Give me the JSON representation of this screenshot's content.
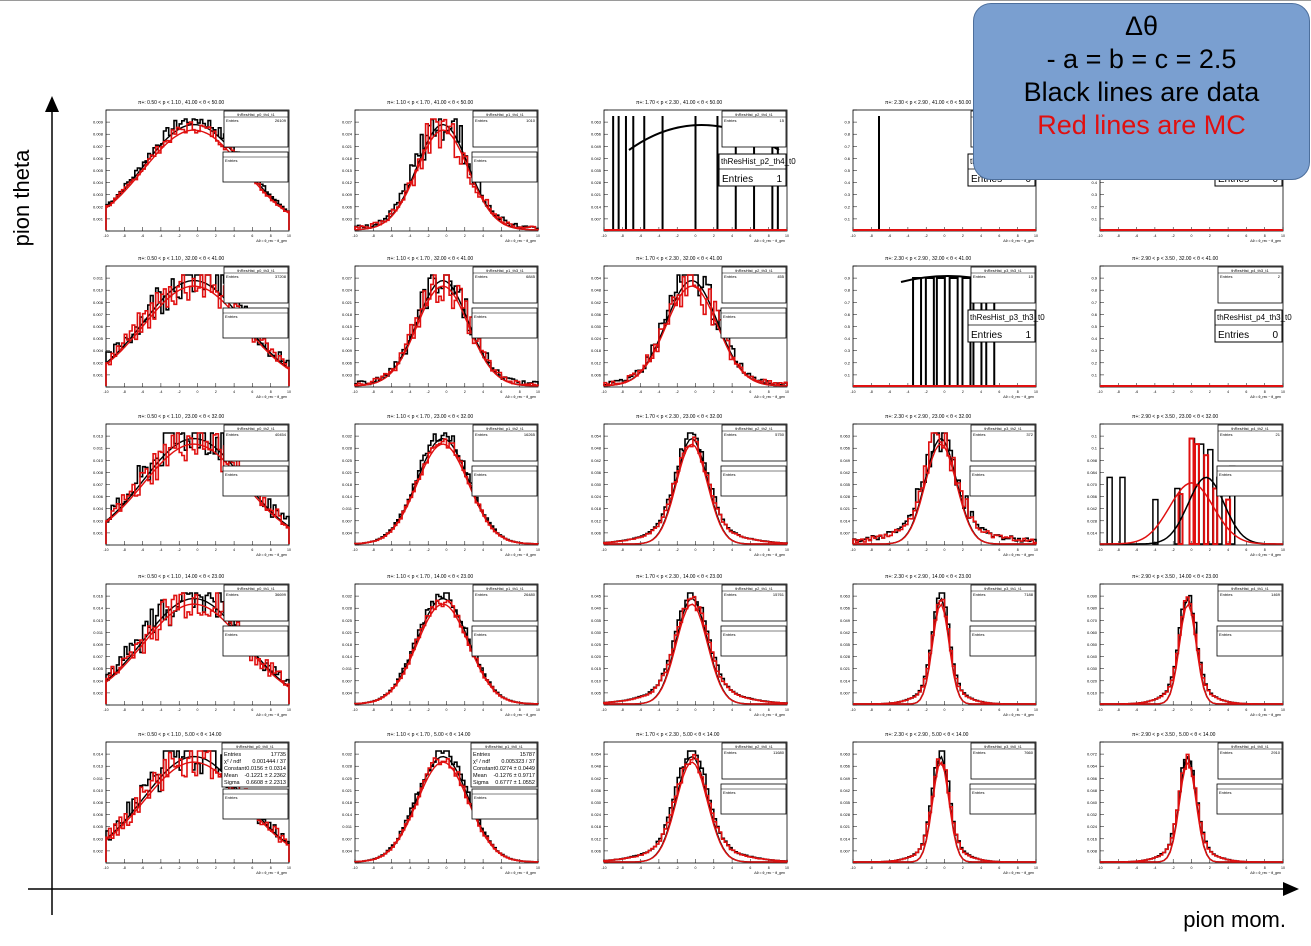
{
  "page": {
    "y_axis_label": "pion theta",
    "x_axis_label": "pion mom.",
    "legend": {
      "line1": "Δθ",
      "line2": "- a = b = c = 2.5",
      "line3": "Black lines are data",
      "line4": "Red lines are MC"
    },
    "colors": {
      "data": "#000000",
      "mc": "#e01010",
      "legend_bg": "#7a9fd0"
    }
  },
  "chart_data": {
    "type": "grid-of-histograms",
    "rows": [
      "41.00 < θ < 50.00",
      "32.00 < θ < 41.00",
      "23.00 < θ < 32.00",
      "14.00 < θ < 23.00",
      "5.00 < θ < 14.00"
    ],
    "cols": [
      "0.50 < p < 1.10",
      "1.10 < p < 1.70",
      "1.70 < p < 2.30",
      "2.30 < p < 2.90",
      "2.90 < p < 3.50"
    ],
    "panels": [
      {
        "title": "π+: 0.50 < p < 1.10 , 41.00 < θ < 50.00",
        "stats_title": "thResHist_p0_th4_t1",
        "entries": "26109",
        "kind": "broad",
        "noisy": false,
        "ymax": 0.01,
        "text_box": false
      },
      {
        "title": "π+: 1.10 < p < 1.70 , 41.00 < θ < 50.00",
        "stats_title": "thResHist_p1_th4_t1",
        "entries": "1010",
        "kind": "medium",
        "noisy": true,
        "ymax": 0.03,
        "text_box": false
      },
      {
        "title": "π+: 1.70 < p < 2.30 , 41.00 < θ < 50.00",
        "stats_title": "thResHist_p2_th4_t1",
        "entries": "15",
        "kind": "spikes",
        "noisy": false,
        "ymax": 0.07,
        "text_box": true,
        "box_title": "thResHist_p2_th4_t0",
        "box_label": "Entries",
        "box_value": "1"
      },
      {
        "title": "π+: 2.30 < p < 2.90 , 41.00 < θ < 50.00",
        "stats_title": "thResHist_p3_th4_t1",
        "entries": "1",
        "kind": "single",
        "noisy": false,
        "ymax": 1,
        "text_box": true,
        "box_title": "thResHist_p3_th4_t0",
        "box_label": "Entries",
        "box_value": "0"
      },
      {
        "title": "π+: 2.90 < p < 3.50 , 41.00 < θ < 50.00",
        "stats_title": "thResHist_p4_th4_t1",
        "entries": "0",
        "kind": "empty",
        "noisy": false,
        "ymax": 1,
        "text_box": true,
        "box_title": "thResHist_p4_th4_t0",
        "box_label": "Entries",
        "box_value": "0"
      },
      {
        "title": "π+: 0.50 < p < 1.10 , 32.00 < θ < 41.00",
        "stats_title": "thResHist_p0_th3_t1",
        "entries": "37208",
        "kind": "broad",
        "noisy": true,
        "ymax": 0.012,
        "text_box": false
      },
      {
        "title": "π+: 1.10 < p < 1.70 , 32.00 < θ < 41.00",
        "stats_title": "thResHist_p1_th3_t1",
        "entries": "6845",
        "kind": "medium",
        "noisy": true,
        "ymax": 0.03,
        "text_box": false
      },
      {
        "title": "π+: 1.70 < p < 2.30 , 32.00 < θ < 41.00",
        "stats_title": "thResHist_p2_th3_t1",
        "entries": "455",
        "kind": "medium",
        "noisy": true,
        "ymax": 0.06,
        "text_box": false
      },
      {
        "title": "π+: 2.30 < p < 2.90 , 32.00 < θ < 41.00",
        "stats_title": "thResHist_p3_th3_t1",
        "entries": "10",
        "kind": "bars",
        "noisy": false,
        "ymax": 1,
        "text_box": true,
        "box_title": "thResHist_p3_th3_t0",
        "box_label": "Entries",
        "box_value": "1"
      },
      {
        "title": "π+: 2.90 < p < 3.50 , 32.00 < θ < 41.00",
        "stats_title": "thResHist_p4_th3_t1",
        "entries": "2",
        "kind": "empty",
        "noisy": false,
        "ymax": 1,
        "text_box": true,
        "box_title": "thResHist_p4_th3_t0",
        "box_label": "Entries",
        "box_value": "0"
      },
      {
        "title": "π+: 0.50 < p < 1.10 , 23.00 < θ < 32.00",
        "stats_title": "thResHist_p0_th2_t1",
        "entries": "40454",
        "kind": "broad",
        "noisy": true,
        "ymax": 0.014,
        "text_box": false
      },
      {
        "title": "π+: 1.10 < p < 1.70 , 23.00 < θ < 32.00",
        "stats_title": "thResHist_p1_th2_t1",
        "entries": "16265",
        "kind": "medium",
        "noisy": false,
        "ymax": 0.035,
        "text_box": false
      },
      {
        "title": "π+: 1.70 < p < 2.30 , 23.00 < θ < 32.00",
        "stats_title": "thResHist_p2_th2_t1",
        "entries": "5750",
        "kind": "narrow",
        "noisy": false,
        "ymax": 0.06,
        "text_box": false
      },
      {
        "title": "π+: 2.30 < p < 2.90 , 23.00 < θ < 32.00",
        "stats_title": "thResHist_p3_th2_t1",
        "entries": "372",
        "kind": "narrow",
        "noisy": true,
        "ymax": 0.07,
        "text_box": false
      },
      {
        "title": "π+: 2.90 < p < 3.50 , 23.00 < θ < 32.00",
        "stats_title": "thResHist_p4_th2_t1",
        "entries": "21",
        "kind": "spiky",
        "noisy": true,
        "ymax": 0.14,
        "text_box": false
      },
      {
        "title": "π+: 0.50 < p < 1.10 , 14.00 < θ < 23.00",
        "stats_title": "thResHist_p0_th1_t1",
        "entries": "36699",
        "kind": "broad",
        "noisy": true,
        "ymax": 0.018,
        "text_box": false
      },
      {
        "title": "π+: 1.10 < p < 1.70 , 14.00 < θ < 23.00",
        "stats_title": "thResHist_p1_th1_t1",
        "entries": "26480",
        "kind": "medium",
        "noisy": false,
        "ymax": 0.035,
        "text_box": false
      },
      {
        "title": "π+: 1.70 < p < 2.30 , 14.00 < θ < 23.00",
        "stats_title": "thResHist_p2_th1_t1",
        "entries": "15761",
        "kind": "narrow",
        "noisy": false,
        "ymax": 0.05,
        "text_box": false
      },
      {
        "title": "π+: 2.30 < p < 2.90 , 14.00 < θ < 23.00",
        "stats_title": "thResHist_p3_th1_t1",
        "entries": "7188",
        "kind": "vnarrow",
        "noisy": false,
        "ymax": 0.07,
        "text_box": false
      },
      {
        "title": "π+: 2.90 < p < 3.50 , 14.00 < θ < 23.00",
        "stats_title": "thResHist_p4_th1_t1",
        "entries": "1469",
        "kind": "vnarrow",
        "noisy": false,
        "ymax": 0.1,
        "text_box": false
      },
      {
        "title": "π+: 0.50 < p < 1.10 , 5.00 < θ < 14.00",
        "stats_title": "thResHist_p0_th0_t1",
        "entries": "17735",
        "kind": "broad",
        "noisy": true,
        "ymax": 0.016,
        "text_box": false,
        "big_stats": true,
        "stats_rows": [
          [
            "Entries",
            "17735"
          ],
          [
            "χ² / ndf",
            "0.001444 / 37"
          ],
          [
            "Constant",
            "0.0156 ± 0.0314"
          ],
          [
            "Mean",
            "-0.1221 ± 2.2362"
          ],
          [
            "Sigma",
            "0.6608 ± 2.2313"
          ]
        ]
      },
      {
        "title": "π+: 1.10 < p < 1.70 , 5.00 < θ < 14.00",
        "stats_title": "thResHist_p1_th0_t1",
        "entries": "15787",
        "kind": "medium",
        "noisy": false,
        "ymax": 0.035,
        "text_box": false,
        "big_stats": true,
        "stats_rows": [
          [
            "Entries",
            "15787"
          ],
          [
            "χ² / ndf",
            "0.005323 / 37"
          ],
          [
            "Constant",
            "0.0274 ± 0.0449"
          ],
          [
            "Mean",
            "-0.1276 ± 0.9717"
          ],
          [
            "Sigma",
            "0.6777 ± 1.0552"
          ]
        ]
      },
      {
        "title": "π+: 1.70 < p < 2.30 , 5.00 < θ < 14.00",
        "stats_title": "thResHist_p2_th0_t1",
        "entries": "11680",
        "kind": "narrow",
        "noisy": false,
        "ymax": 0.06,
        "text_box": false
      },
      {
        "title": "π+: 2.30 < p < 2.90 , 5.00 < θ < 14.00",
        "stats_title": "thResHist_p3_th0_t1",
        "entries": "7660",
        "kind": "vnarrow",
        "noisy": false,
        "ymax": 0.07,
        "text_box": false
      },
      {
        "title": "π+: 2.90 < p < 3.50 , 5.00 < θ < 14.00",
        "stats_title": "thResHist_p4_th0_t1",
        "entries": "2910",
        "kind": "vnarrow",
        "noisy": false,
        "ymax": 0.08,
        "text_box": false
      }
    ]
  }
}
